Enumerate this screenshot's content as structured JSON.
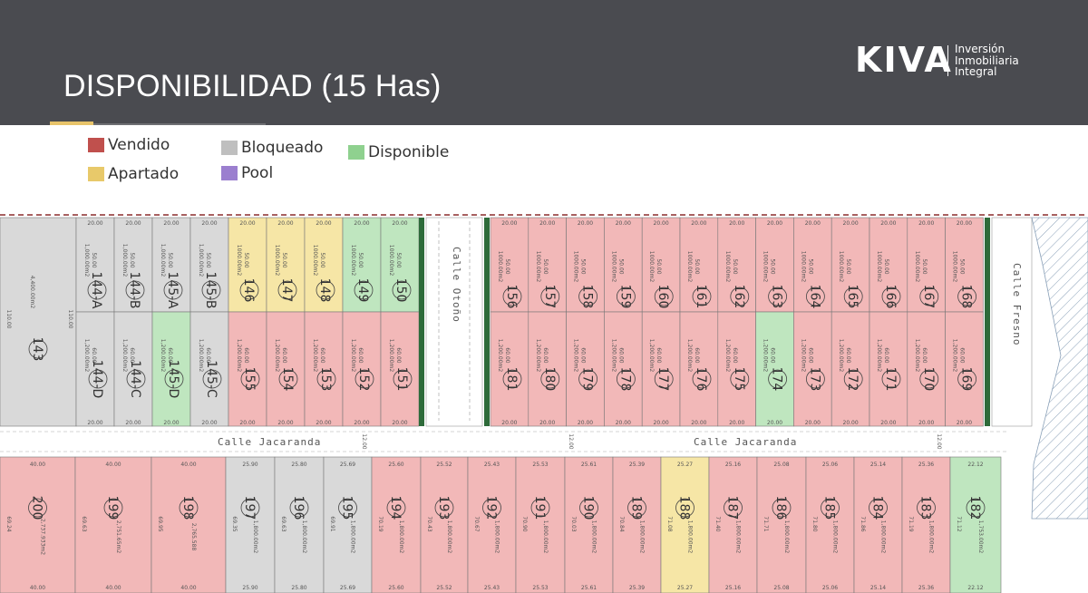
{
  "header": {
    "title": "DISPONIBILIDAD (15 Has)",
    "logo_mark": "KIVA",
    "logo_tagline": [
      "Inversión",
      "Inmobiliaria",
      "Integral"
    ]
  },
  "legend": [
    {
      "label": "Vendido",
      "color": "#c0504d"
    },
    {
      "label": "Apartado",
      "color": "#e8c96a"
    },
    {
      "label": "Bloqueado",
      "color": "#bfbfbf"
    },
    {
      "label": "Pool",
      "color": "#9b7fcf"
    },
    {
      "label": "Disponible",
      "color": "#8fd18f"
    }
  ],
  "colors": {
    "vendido_fill": "#f2b8b8",
    "apartado_fill": "#f6e6a6",
    "bloqueado_fill": "#d9d9d9",
    "disponible_fill": "#bfe6bf",
    "road": "#ffffff",
    "median": "#2e6b3a"
  },
  "streets": {
    "otono": "Calle Otoño",
    "fresno": "Calle Fresno",
    "jacaranda": "Calle Jacaranda"
  },
  "lots_top_left": [
    {
      "id": "143",
      "status": "bloqueado",
      "area": "4,400.00m2",
      "dims": [
        "110.00",
        "110.00"
      ]
    },
    {
      "id": "144-A",
      "status": "bloqueado",
      "area": "1,000.00m2",
      "dims": [
        "20.00",
        "50.00"
      ]
    },
    {
      "id": "144-B",
      "status": "bloqueado",
      "area": "1,000.00m2",
      "dims": [
        "20.00",
        "50.00"
      ]
    },
    {
      "id": "145-A",
      "status": "bloqueado",
      "area": "1,000.00m2",
      "dims": [
        "20.00",
        "50.00"
      ]
    },
    {
      "id": "145-B",
      "status": "bloqueado",
      "area": "1,000.00m2",
      "dims": [
        "20.00",
        "50.00"
      ]
    },
    {
      "id": "146",
      "status": "apartado",
      "area": "1000.00m2",
      "dims": [
        "20.00",
        "50.00"
      ]
    },
    {
      "id": "147",
      "status": "apartado",
      "area": "1000.00m2",
      "dims": [
        "20.00",
        "50.00"
      ]
    },
    {
      "id": "148",
      "status": "apartado",
      "area": "1000.00m2",
      "dims": [
        "20.00",
        "50.00"
      ]
    },
    {
      "id": "149",
      "status": "disponible",
      "area": "1000.00m2",
      "dims": [
        "20.00",
        "50.00"
      ]
    },
    {
      "id": "150",
      "status": "disponible",
      "area": "1000.00m2",
      "dims": [
        "20.00",
        "50.00"
      ]
    }
  ],
  "lots_bottom_left": [
    {
      "id": "144-D",
      "status": "bloqueado",
      "area": "1,200.00m2",
      "dims": [
        "20.00",
        "60.00"
      ]
    },
    {
      "id": "144-C",
      "status": "bloqueado",
      "area": "1,200.00m2",
      "dims": [
        "20.00",
        "60.00"
      ]
    },
    {
      "id": "145-D",
      "status": "disponible",
      "area": "1,200.00m2",
      "dims": [
        "20.00",
        "60.00"
      ]
    },
    {
      "id": "145-C",
      "status": "bloqueado",
      "area": "1,200.00m2",
      "dims": [
        "20.00",
        "60.00"
      ]
    },
    {
      "id": "155",
      "status": "vendido",
      "area": "1,200.00m2",
      "dims": [
        "20.00",
        "60.00"
      ]
    },
    {
      "id": "154",
      "status": "vendido",
      "area": "1,200.00m2",
      "dims": [
        "20.00",
        "60.00"
      ]
    },
    {
      "id": "153",
      "status": "vendido",
      "area": "1,200.00m2",
      "dims": [
        "20.00",
        "60.00"
      ]
    },
    {
      "id": "152",
      "status": "vendido",
      "area": "1,200.00m2",
      "dims": [
        "20.00",
        "60.00"
      ]
    },
    {
      "id": "151",
      "status": "vendido",
      "area": "1,200.00m2",
      "dims": [
        "20.00",
        "60.00"
      ]
    }
  ],
  "lots_top_right": [
    "156",
    "157",
    "158",
    "159",
    "160",
    "161",
    "162",
    "163",
    "164",
    "165",
    "166",
    "167",
    "168"
  ],
  "lots_top_right_area": "1000.00m2",
  "lots_bottom_right": [
    {
      "id": "181",
      "status": "vendido"
    },
    {
      "id": "180",
      "status": "vendido"
    },
    {
      "id": "179",
      "status": "vendido"
    },
    {
      "id": "178",
      "status": "vendido"
    },
    {
      "id": "177",
      "status": "vendido"
    },
    {
      "id": "176",
      "status": "vendido"
    },
    {
      "id": "175",
      "status": "vendido"
    },
    {
      "id": "174",
      "status": "disponible"
    },
    {
      "id": "173",
      "status": "vendido"
    },
    {
      "id": "172",
      "status": "vendido"
    },
    {
      "id": "171",
      "status": "vendido"
    },
    {
      "id": "170",
      "status": "vendido"
    },
    {
      "id": "169",
      "status": "vendido"
    }
  ],
  "lots_bottom_right_area": "1,200.00m2",
  "lots_south": [
    {
      "id": "200",
      "status": "vendido",
      "area": "2,737.933m2",
      "front": "40.00",
      "side": "69.24"
    },
    {
      "id": "199",
      "status": "vendido",
      "area": "2,751.65m2",
      "front": "40.00",
      "side": "69.63"
    },
    {
      "id": "198",
      "status": "vendido",
      "area": "2,765.588",
      "front": "40.00",
      "side": "69.95"
    },
    {
      "id": "197",
      "status": "bloqueado",
      "area": "1,800.00m2",
      "front": "25.90",
      "side": "69.35"
    },
    {
      "id": "196",
      "status": "bloqueado",
      "area": "1,800.00m2",
      "front": "25.80",
      "side": "69.63"
    },
    {
      "id": "195",
      "status": "bloqueado",
      "area": "1,800.00m2",
      "front": "25.69",
      "side": "69.91"
    },
    {
      "id": "194",
      "status": "vendido",
      "area": "1,800.00m2",
      "front": "25.60",
      "side": "70.19"
    },
    {
      "id": "193",
      "status": "vendido",
      "area": "1,800.00m2",
      "front": "25.52",
      "side": "70.43"
    },
    {
      "id": "192",
      "status": "vendido",
      "area": "1,800.00m2",
      "front": "25.43",
      "side": "70.67"
    },
    {
      "id": "191",
      "status": "vendido",
      "area": "1,800.00m2",
      "front": "25.53",
      "side": "70.90"
    },
    {
      "id": "190",
      "status": "vendido",
      "area": "1,800.00m2",
      "front": "25.61",
      "side": "70.03"
    },
    {
      "id": "189",
      "status": "vendido",
      "area": "1,800.00m2",
      "front": "25.39",
      "side": "70.84"
    },
    {
      "id": "188",
      "status": "apartado",
      "area": "1,800.00m2",
      "front": "25.27",
      "side": "71.08"
    },
    {
      "id": "187",
      "status": "vendido",
      "area": "1,800.00m2",
      "front": "25.16",
      "side": "71.40"
    },
    {
      "id": "186",
      "status": "vendido",
      "area": "1,800.00m2",
      "front": "25.08",
      "side": "71.71"
    },
    {
      "id": "185",
      "status": "vendido",
      "area": "1,800.00m2",
      "front": "25.06",
      "side": "71.80"
    },
    {
      "id": "184",
      "status": "vendido",
      "area": "1,800.00m2",
      "front": "25.14",
      "side": "71.86"
    },
    {
      "id": "183",
      "status": "vendido",
      "area": "1,800.00m2",
      "front": "25.36",
      "side": "71.19"
    },
    {
      "id": "182",
      "status": "disponible",
      "area": "1,753.00m2",
      "front": "22.12",
      "side": "71.12"
    }
  ],
  "road_marks": [
    "12.00",
    "12.00",
    "12.00"
  ]
}
